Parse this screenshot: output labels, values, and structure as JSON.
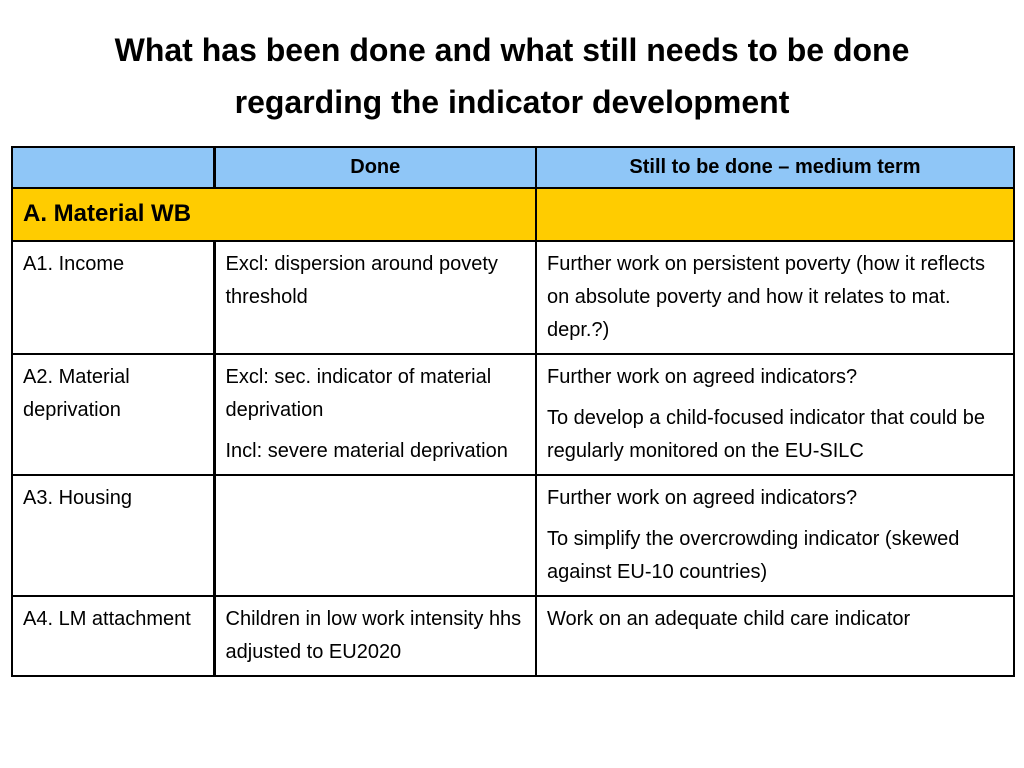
{
  "title": "What has been done and what still needs to be done regarding the indicator development",
  "table": {
    "header": [
      "Done",
      "Still to be done – medium term"
    ],
    "section": "A. Material WB",
    "rows": [
      {
        "label": "A1. Income",
        "done": [
          "Excl: dispersion around povety threshold"
        ],
        "todo": [
          "Further work on persistent poverty (how it reflects on absolute poverty and how it relates to mat. depr.?)"
        ]
      },
      {
        "label": "A2. Material deprivation",
        "done": [
          "Excl: sec. indicator of material deprivation",
          "Incl: severe material deprivation"
        ],
        "todo": [
          "Further work on agreed indicators?",
          "To develop a child-focused indicator that could be regularly monitored on the EU-SILC"
        ]
      },
      {
        "label": "A3. Housing",
        "done": [],
        "todo": [
          "Further work on agreed indicators?",
          "To simplify the overcrowding indicator (skewed against EU-10 countries)"
        ]
      },
      {
        "label": "A4. LM attachment",
        "done": [
          "Children in low work intensity hhs adjusted to EU2020"
        ],
        "todo": [
          "Work on an adequate child care indicator"
        ]
      }
    ]
  }
}
